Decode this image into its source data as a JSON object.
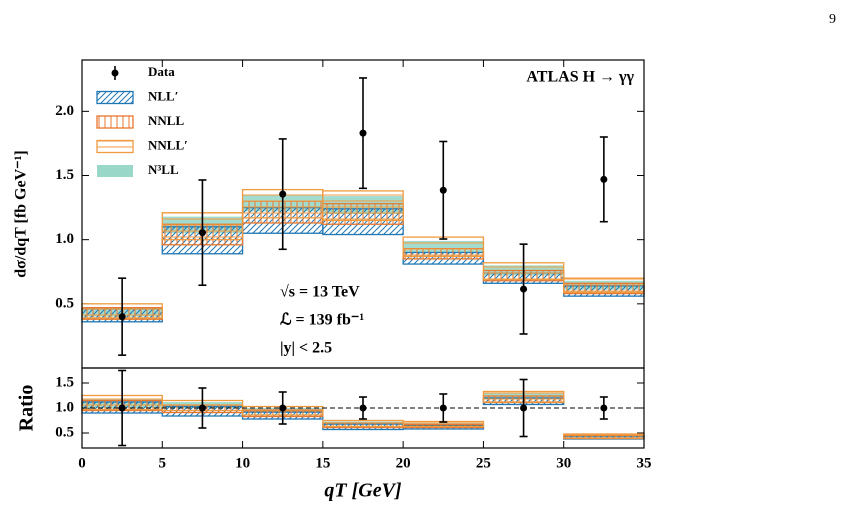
{
  "page_number": "9",
  "chart_data": [
    {
      "type": "band",
      "ylabel": "dσ/dqT [fb GeV⁻¹]",
      "annotations": [
        "ATLAS H → γγ",
        "√s = 13 TeV",
        "ℒ = 139 fb⁻¹",
        "|y| < 2.5"
      ],
      "bins": [
        0,
        5,
        10,
        15,
        20,
        25,
        30,
        35
      ],
      "xlim": [
        0,
        35
      ],
      "ylim": [
        0,
        2.4
      ],
      "yticks": [
        0.5,
        {
          "value": 1.0,
          "label": "1.0"
        },
        1.5,
        {
          "value": 2.0,
          "label": "2.0"
        }
      ],
      "legend": "upper left",
      "data": {
        "name": "Data",
        "color": "#000000",
        "x": [
          2.5,
          7.5,
          12.5,
          17.5,
          22.5,
          27.5,
          32.5
        ],
        "values": [
          0.4,
          1.055,
          1.355,
          1.83,
          1.385,
          0.615,
          1.47
        ],
        "errors": [
          0.3,
          0.41,
          0.43,
          0.43,
          0.38,
          0.35,
          0.33
        ]
      },
      "series": [
        {
          "name": "NLL′",
          "color": "#1f77b4",
          "hatch": "diag",
          "low": [
            0.36,
            0.89,
            1.05,
            1.04,
            0.81,
            0.66,
            0.56
          ],
          "high": [
            0.46,
            1.1,
            1.25,
            1.24,
            0.9,
            0.74,
            0.64
          ]
        },
        {
          "name": "NNLL",
          "color": "#e8772e",
          "hatch": "vert",
          "low": [
            0.38,
            0.96,
            1.13,
            1.12,
            0.85,
            0.68,
            0.58
          ],
          "high": [
            0.47,
            1.12,
            1.3,
            1.28,
            0.93,
            0.76,
            0.66
          ]
        },
        {
          "name": "NNLL′",
          "color": "#f09a40",
          "hatch": "horiz",
          "low": [
            0.39,
            1.0,
            1.17,
            1.15,
            0.87,
            0.69,
            0.59
          ],
          "high": [
            0.5,
            1.21,
            1.39,
            1.38,
            1.02,
            0.82,
            0.7
          ]
        },
        {
          "name": "N³LL",
          "color": "#99d8c9",
          "hatch": "solid",
          "low": [
            0.4,
            1.05,
            1.22,
            1.2,
            0.9,
            0.72,
            0.61
          ],
          "high": [
            0.47,
            1.18,
            1.35,
            1.34,
            0.99,
            0.8,
            0.68
          ]
        }
      ]
    },
    {
      "type": "band",
      "ylabel": "Ratio",
      "xlabel": "qT [GeV]",
      "bins": [
        0,
        5,
        10,
        15,
        20,
        25,
        30,
        35
      ],
      "xlim": [
        0,
        35
      ],
      "xticks": [
        0,
        5,
        10,
        15,
        20,
        25,
        30,
        35
      ],
      "ylim": [
        0.2,
        1.8
      ],
      "yticks": [
        0.5,
        {
          "value": 1.0,
          "label": "1.0"
        },
        1.5
      ],
      "hline": 1.0,
      "data": {
        "color": "#000000",
        "x": [
          2.5,
          7.5,
          12.5,
          17.5,
          22.5,
          27.5,
          32.5
        ],
        "values": [
          1.0,
          1.0,
          1.0,
          1.0,
          1.0,
          1.0,
          1.0
        ],
        "errors": [
          0.75,
          0.4,
          0.32,
          0.22,
          0.28,
          0.57,
          0.22
        ]
      },
      "series": [
        {
          "color": "#1f77b4",
          "hatch": "diag",
          "low": [
            0.9,
            0.84,
            0.78,
            0.57,
            0.58,
            1.07,
            0.38
          ],
          "high": [
            1.12,
            1.03,
            0.92,
            0.68,
            0.65,
            1.2,
            0.44
          ]
        },
        {
          "color": "#e8772e",
          "hatch": "vert",
          "low": [
            0.95,
            0.91,
            0.83,
            0.61,
            0.61,
            1.11,
            0.39
          ],
          "high": [
            1.15,
            1.06,
            0.96,
            0.7,
            0.67,
            1.24,
            0.45
          ]
        },
        {
          "color": "#f09a40",
          "hatch": "horiz",
          "low": [
            0.97,
            0.95,
            0.86,
            0.63,
            0.63,
            1.12,
            0.4
          ],
          "high": [
            1.25,
            1.15,
            1.03,
            0.75,
            0.73,
            1.33,
            0.48
          ]
        },
        {
          "color": "#99d8c9",
          "hatch": "solid",
          "low": [
            1.0,
            1.0,
            0.9,
            0.66,
            0.65,
            1.17,
            0.41
          ],
          "high": [
            1.17,
            1.12,
            1.0,
            0.73,
            0.71,
            1.3,
            0.46
          ]
        }
      ]
    }
  ]
}
